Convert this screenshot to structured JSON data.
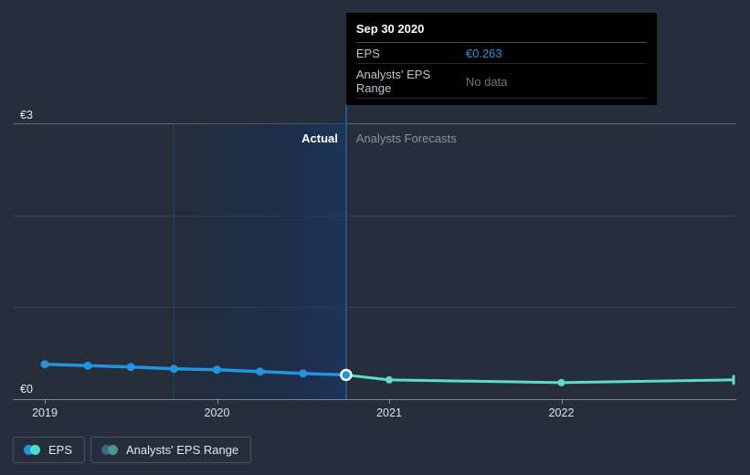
{
  "tooltip": {
    "title": "Sep 30 2020",
    "rows": [
      {
        "label": "EPS",
        "value": "€0.263",
        "value_color": "#2394df"
      },
      {
        "label": "Analysts' EPS Range",
        "value": "No data",
        "value_color": "#6d7683"
      }
    ]
  },
  "annotations": {
    "actual": "Actual",
    "forecasts": "Analysts Forecasts"
  },
  "legend": {
    "items": [
      {
        "label": "EPS",
        "colors": [
          "#2394df",
          "#4edec6"
        ]
      },
      {
        "label": "Analysts' EPS Range",
        "colors": [
          "#35688a",
          "#4f968b"
        ]
      }
    ]
  },
  "colors": {
    "background": "#262e3b",
    "eps_actual": "#2394df",
    "eps_forecast": "#5bdfc3",
    "divider_blue": "#275584",
    "hover_ring": "#ffffff"
  },
  "chart_data": {
    "type": "line",
    "title": "EPS: actual vs analysts forecasts",
    "currency": "EUR",
    "ylim": [
      0,
      3
    ],
    "xlim": [
      2019,
      2023
    ],
    "y_axis_labels": {
      "top": "€3",
      "bottom": "€0"
    },
    "x_ticks": [
      2019,
      2020,
      2021,
      2022
    ],
    "x_tick_labels": [
      "2019",
      "2020",
      "2021",
      "2022"
    ],
    "grid_values": [
      3,
      2,
      1,
      0
    ],
    "grid": "horizontal",
    "legend_position": "bottom-left",
    "divider_x": 2020.75,
    "highlight_region": {
      "from": 2019.75,
      "to": 2020.75
    },
    "hover_point": {
      "x": 2020.75,
      "value": 0.263,
      "date": "Sep 30 2020"
    },
    "series": [
      {
        "name": "EPS",
        "role": "actual",
        "color": "#2394df",
        "x": [
          2019.0,
          2019.25,
          2019.5,
          2019.75,
          2020.0,
          2020.25,
          2020.5,
          2020.75
        ],
        "values": [
          0.38,
          0.365,
          0.35,
          0.33,
          0.32,
          0.3,
          0.28,
          0.263
        ],
        "dots": "all"
      },
      {
        "name": "EPS forecast",
        "role": "forecast",
        "color": "#5bdfc3",
        "x": [
          2020.75,
          2021.0,
          2022.0,
          2023.0
        ],
        "values": [
          0.263,
          0.21,
          0.18,
          0.21
        ],
        "dots": [
          1,
          2
        ],
        "endcap": true
      }
    ]
  }
}
